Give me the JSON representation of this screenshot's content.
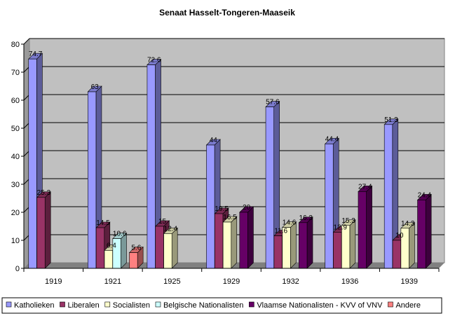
{
  "chart_data": {
    "type": "bar",
    "title": "Senaat Hasselt-Tongeren-Maaseik",
    "xlabel": "",
    "ylabel": "",
    "ylim": [
      0,
      80
    ],
    "yticks": [
      0,
      10,
      20,
      30,
      40,
      50,
      60,
      70,
      80
    ],
    "categories": [
      "1919",
      "1921",
      "1925",
      "1929",
      "1932",
      "1936",
      "1939"
    ],
    "grid": true,
    "legend_position": "bottom",
    "series": [
      {
        "name": "Katholieken",
        "color": "#9999ff",
        "values": [
          74.7,
          63,
          72.6,
          44,
          57.6,
          44.4,
          51.3
        ]
      },
      {
        "name": "Liberalen",
        "color": "#993366",
        "values": [
          25.3,
          14.5,
          15,
          19.5,
          11.6,
          12.9,
          10
        ]
      },
      {
        "name": "Socialisten",
        "color": "#ffffcc",
        "values": [
          null,
          6.4,
          12.4,
          16.5,
          14.6,
          15.3,
          14.3
        ]
      },
      {
        "name": "Belgische Nationalisten",
        "color": "#ccffff",
        "values": [
          null,
          10.6,
          null,
          null,
          null,
          null,
          null
        ]
      },
      {
        "name": "Vlaamse Nationalisten - KVV of VNV",
        "color": "#660066",
        "values": [
          null,
          null,
          null,
          20,
          16.3,
          27.4,
          24.4
        ]
      },
      {
        "name": "Andere",
        "color": "#ff8080",
        "values": [
          null,
          5.6,
          null,
          null,
          null,
          null,
          null
        ]
      }
    ],
    "data_labels": [
      [
        "74.7",
        "63",
        "72.6",
        "44",
        "57.6",
        "44.4",
        "51.3"
      ],
      [
        "25.3",
        "14.5",
        "15",
        "19.5",
        "11.6",
        "12.9",
        "10"
      ],
      [
        null,
        "6.4",
        "12.4",
        "16.5",
        "14.6",
        "15.3",
        "14.3"
      ],
      [
        null,
        "10.6",
        null,
        null,
        null,
        null,
        null
      ],
      [
        null,
        null,
        null,
        "20",
        "16.3",
        "27.4",
        "24.4"
      ],
      [
        null,
        "5.6",
        null,
        null,
        null,
        null,
        null
      ]
    ]
  }
}
